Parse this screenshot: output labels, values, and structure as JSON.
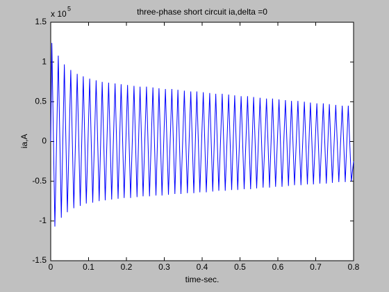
{
  "chart_data": {
    "type": "line",
    "title": "three-phase short circuit ia,delta =0",
    "xlabel": "time-sec.",
    "ylabel": "ia,A",
    "y_multiplier": "x 10",
    "y_multiplier_exponent": "5",
    "color": "#0000ff",
    "xlim": [
      0,
      0.8
    ],
    "xticks": [
      0,
      0.1,
      0.2,
      0.3,
      0.4,
      0.5,
      0.6,
      0.7,
      0.8
    ],
    "ylim": [
      -1.5,
      1.5
    ],
    "yticks": [
      -1.5,
      -1,
      -0.5,
      0,
      0.5,
      1,
      1.5
    ],
    "grid": false,
    "x": [
      0,
      0.003,
      0.011,
      0.02,
      0.028,
      0.036,
      0.044,
      0.053,
      0.061,
      0.07,
      0.078,
      0.086,
      0.094,
      0.103,
      0.111,
      0.12,
      0.128,
      0.136,
      0.144,
      0.153,
      0.161,
      0.17,
      0.178,
      0.186,
      0.194,
      0.203,
      0.211,
      0.22,
      0.228,
      0.236,
      0.244,
      0.253,
      0.261,
      0.27,
      0.278,
      0.286,
      0.294,
      0.303,
      0.311,
      0.32,
      0.328,
      0.336,
      0.344,
      0.353,
      0.361,
      0.37,
      0.378,
      0.386,
      0.394,
      0.403,
      0.411,
      0.42,
      0.428,
      0.436,
      0.444,
      0.453,
      0.461,
      0.47,
      0.478,
      0.486,
      0.494,
      0.503,
      0.511,
      0.52,
      0.528,
      0.536,
      0.544,
      0.553,
      0.561,
      0.57,
      0.578,
      0.586,
      0.594,
      0.603,
      0.611,
      0.62,
      0.628,
      0.636,
      0.644,
      0.653,
      0.661,
      0.67,
      0.678,
      0.686,
      0.694,
      0.703,
      0.711,
      0.72,
      0.728,
      0.736,
      0.744,
      0.753,
      0.761,
      0.77,
      0.778,
      0.786,
      0.794,
      0.8
    ],
    "values": [
      0,
      1.24,
      -1.07,
      1.08,
      -0.96,
      0.97,
      -0.89,
      0.9,
      -0.84,
      0.85,
      -0.81,
      0.82,
      -0.78,
      0.79,
      -0.77,
      0.77,
      -0.75,
      0.75,
      -0.74,
      0.74,
      -0.73,
      0.73,
      -0.72,
      0.72,
      -0.71,
      0.71,
      -0.71,
      0.7,
      -0.7,
      0.69,
      -0.69,
      0.69,
      -0.69,
      0.68,
      -0.68,
      0.67,
      -0.68,
      0.66,
      -0.67,
      0.66,
      -0.66,
      0.65,
      -0.66,
      0.64,
      -0.65,
      0.63,
      -0.65,
      0.63,
      -0.64,
      0.62,
      -0.64,
      0.61,
      -0.63,
      0.6,
      -0.62,
      0.6,
      -0.62,
      0.59,
      -0.61,
      0.58,
      -0.61,
      0.57,
      -0.6,
      0.57,
      -0.6,
      0.56,
      -0.59,
      0.55,
      -0.58,
      0.54,
      -0.58,
      0.54,
      -0.57,
      0.53,
      -0.57,
      0.52,
      -0.56,
      0.51,
      -0.55,
      0.51,
      -0.55,
      0.5,
      -0.54,
      0.49,
      -0.54,
      0.48,
      -0.53,
      0.48,
      -0.53,
      0.47,
      -0.52,
      0.46,
      -0.51,
      0.45,
      -0.51,
      0.45,
      -0.5,
      -0.25
    ]
  }
}
